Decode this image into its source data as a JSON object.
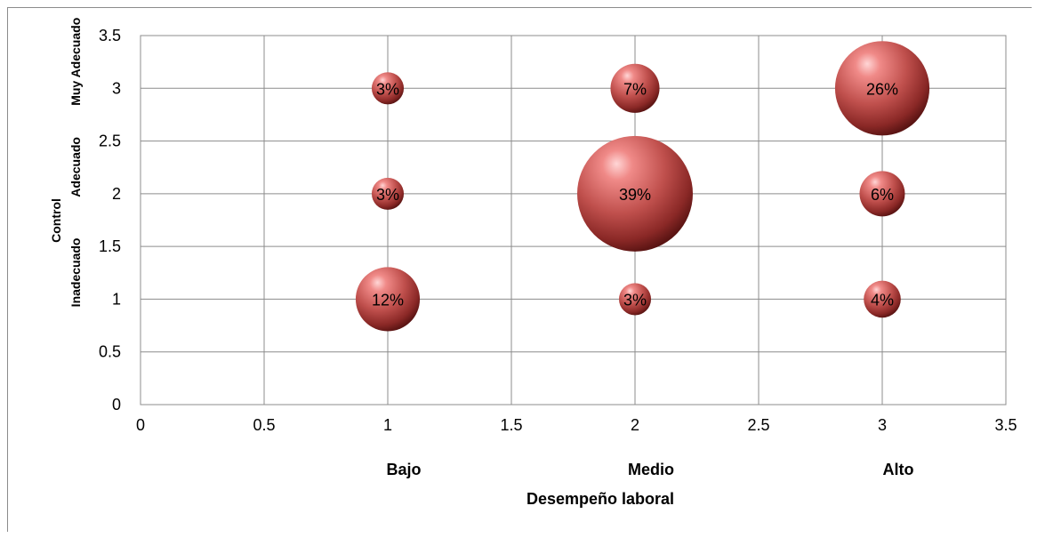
{
  "chart_data": {
    "type": "scatter",
    "subtype": "bubble",
    "title": "",
    "xlabel": "Desempeño laboral",
    "ylabel": "Control",
    "xlim": [
      0,
      3.5
    ],
    "ylim": [
      0,
      3.5
    ],
    "x_ticks": [
      "0",
      "0.5",
      "1",
      "1.5",
      "2",
      "2.5",
      "3",
      "3.5"
    ],
    "y_ticks": [
      "0",
      "0.5",
      "1",
      "1.5",
      "2",
      "2.5",
      "3",
      "3.5"
    ],
    "x_categories": [
      {
        "x": 1,
        "label": "Bajo"
      },
      {
        "x": 2,
        "label": "Medio"
      },
      {
        "x": 3,
        "label": "Alto"
      }
    ],
    "y_categories": [
      {
        "y": 1,
        "label": "Inadecuado"
      },
      {
        "y": 2,
        "label": "Adecuado"
      },
      {
        "y": 3,
        "label": "Muy Adecuado"
      }
    ],
    "grid": true,
    "bubble_color": "#c0504d",
    "points": [
      {
        "x": 1,
        "y": 3,
        "size": 3,
        "label": "3%"
      },
      {
        "x": 2,
        "y": 3,
        "size": 7,
        "label": "7%"
      },
      {
        "x": 3,
        "y": 3,
        "size": 26,
        "label": "26%"
      },
      {
        "x": 1,
        "y": 2,
        "size": 3,
        "label": "3%"
      },
      {
        "x": 2,
        "y": 2,
        "size": 39,
        "label": "39%"
      },
      {
        "x": 3,
        "y": 2,
        "size": 6,
        "label": "6%"
      },
      {
        "x": 1,
        "y": 1,
        "size": 12,
        "label": "12%"
      },
      {
        "x": 2,
        "y": 1,
        "size": 3,
        "label": "3%"
      },
      {
        "x": 3,
        "y": 1,
        "size": 4,
        "label": "4%"
      }
    ]
  }
}
